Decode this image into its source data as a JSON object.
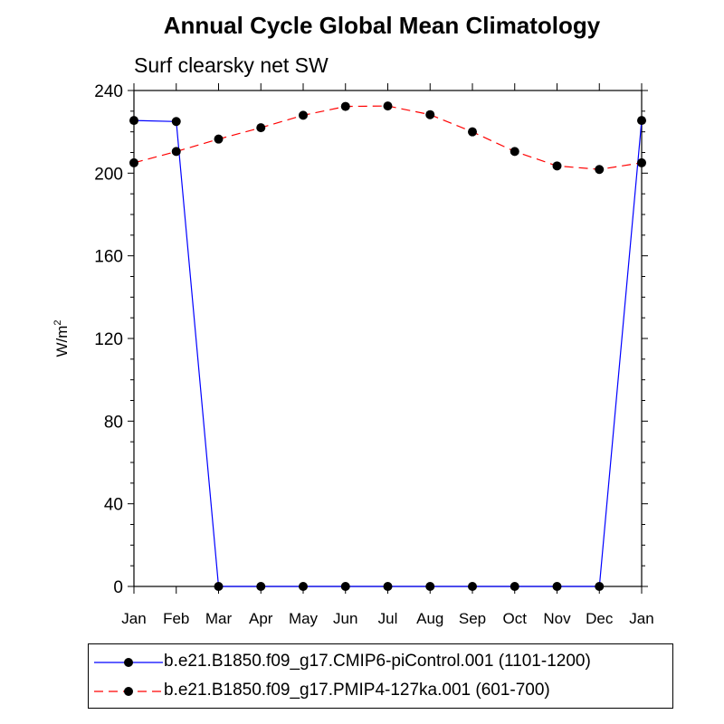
{
  "chart_data": {
    "type": "line",
    "title": "Annual Cycle Global Mean Climatology",
    "subtitle": "Surf clearsky net SW",
    "ylabel": "W/m",
    "ylabel_superscript": "2",
    "ylim": [
      0,
      240
    ],
    "yticks": [
      "0",
      "40",
      "80",
      "120",
      "160",
      "200",
      "240"
    ],
    "categories": [
      "Jan",
      "Feb",
      "Mar",
      "Apr",
      "May",
      "Jun",
      "Jul",
      "Aug",
      "Sep",
      "Oct",
      "Nov",
      "Dec",
      "Jan"
    ],
    "series": [
      {
        "name": "b.e21.B1850.f09_g17.CMIP6-piControl.001 (1101-1200)",
        "color": "#0000ff",
        "dash": "solid",
        "values": [
          225.5,
          225.0,
          0,
          0,
          0,
          0,
          0,
          0,
          0,
          0,
          0,
          0,
          225.5
        ]
      },
      {
        "name": "b.e21.B1850.f09_g17.PMIP4-127ka.001 (601-700)",
        "color": "#ff0000",
        "dash": "dashed",
        "values": [
          205.0,
          210.5,
          216.5,
          222.0,
          228.0,
          232.3,
          232.5,
          228.3,
          220.0,
          210.5,
          203.5,
          201.8,
          205.0
        ]
      }
    ]
  }
}
